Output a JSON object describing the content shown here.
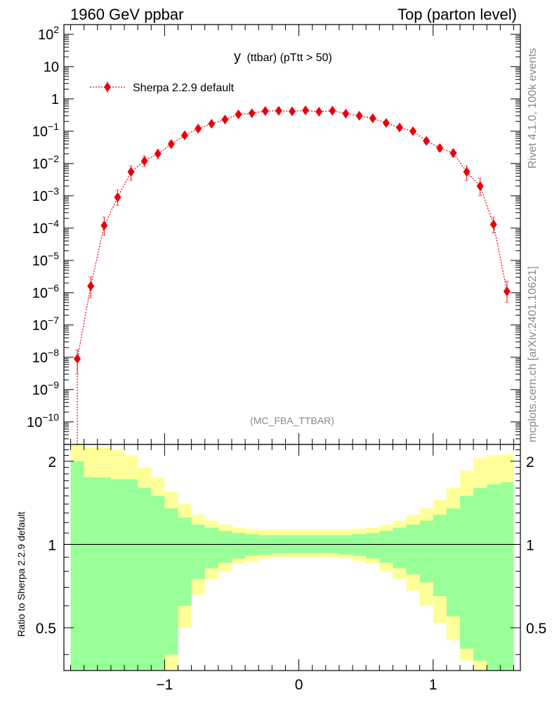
{
  "header": {
    "left": "1960 GeV ppbar",
    "right": "Top (parton level)"
  },
  "plot_title": {
    "main": "y",
    "sub": "(ttbar)  (pTtt > 50)"
  },
  "analysis_tag": "(MC_FBA_TTBAR)",
  "side_text": {
    "top": "Rivet 4.1.0,  100k events",
    "bottom": "mcplots.cern.ch [arXiv:2401.10621]"
  },
  "legend": {
    "label": "Sherpa 2.2.9 default"
  },
  "ratio_ylabel": "Ratio to Sherpa 2.2.9 default",
  "colors": {
    "series": "#e8000b",
    "band_inner": "#99ff99",
    "band_outer": "#ffff99",
    "axis": "#000000",
    "annotation": "#888888"
  },
  "chart_data": [
    {
      "type": "scatter",
      "yscale": "log",
      "xlim": [
        -1.75,
        1.65
      ],
      "ylim": [
        2e-11,
        200
      ],
      "ytick_labels": [
        "10^2",
        "10",
        "1",
        "10^-1",
        "10^-2",
        "10^-3",
        "10^-4",
        "10^-5",
        "10^-6",
        "10^-7",
        "10^-8",
        "10^-9",
        "10^-10"
      ],
      "series": [
        {
          "name": "Sherpa 2.2.9 default",
          "x": [
            -1.65,
            -1.55,
            -1.45,
            -1.35,
            -1.25,
            -1.15,
            -1.05,
            -0.95,
            -0.85,
            -0.75,
            -0.65,
            -0.55,
            -0.45,
            -0.35,
            -0.25,
            -0.15,
            -0.05,
            0.05,
            0.15,
            0.25,
            0.35,
            0.45,
            0.55,
            0.65,
            0.75,
            0.85,
            0.95,
            1.05,
            1.15,
            1.25,
            1.35,
            1.45,
            1.55
          ],
          "y": [
            9e-09,
            1.6e-06,
            0.00012,
            0.0009,
            0.0055,
            0.012,
            0.02,
            0.04,
            0.075,
            0.12,
            0.17,
            0.23,
            0.33,
            0.36,
            0.42,
            0.43,
            0.41,
            0.44,
            0.4,
            0.43,
            0.35,
            0.3,
            0.25,
            0.18,
            0.13,
            0.1,
            0.05,
            0.03,
            0.021,
            0.0055,
            0.002,
            0.00013,
            1.1e-06
          ],
          "y_err_low": [
            6e-09,
            9e-07,
            6e-05,
            0.0004,
            0.0025,
            0.004,
            0.006,
            0.008,
            0.012,
            0.015,
            0.02,
            0.02,
            0.025,
            0.025,
            0.025,
            0.025,
            0.025,
            0.025,
            0.025,
            0.025,
            0.025,
            0.025,
            0.02,
            0.02,
            0.015,
            0.012,
            0.008,
            0.006,
            0.005,
            0.0025,
            0.001,
            6e-05,
            6e-07
          ],
          "y_err_high": [
            8e-09,
            1.5e-06,
            0.0001,
            0.0006,
            0.003,
            0.005,
            0.007,
            0.009,
            0.013,
            0.016,
            0.02,
            0.02,
            0.025,
            0.025,
            0.025,
            0.025,
            0.025,
            0.025,
            0.025,
            0.025,
            0.025,
            0.025,
            0.02,
            0.02,
            0.015,
            0.013,
            0.009,
            0.007,
            0.006,
            0.003,
            0.0015,
            9e-05,
            1.2e-06
          ]
        }
      ]
    },
    {
      "type": "area",
      "xlim": [
        -1.75,
        1.65
      ],
      "ylim": [
        0.35,
        2.3
      ],
      "ytick_labels": [
        "0.5",
        "1",
        "2"
      ],
      "xtick_labels": [
        "−1",
        "0",
        "1"
      ],
      "reference_line": 1,
      "bin_edges": [
        -1.7,
        -1.6,
        -1.5,
        -1.4,
        -1.3,
        -1.2,
        -1.1,
        -1.0,
        -0.9,
        -0.8,
        -0.7,
        -0.6,
        -0.5,
        -0.4,
        -0.3,
        -0.2,
        -0.1,
        0.0,
        0.1,
        0.2,
        0.3,
        0.4,
        0.5,
        0.6,
        0.7,
        0.8,
        0.9,
        1.0,
        1.1,
        1.2,
        1.3,
        1.4,
        1.5,
        1.6
      ],
      "inner_band": {
        "upper": [
          2.0,
          1.75,
          1.75,
          1.72,
          1.72,
          1.6,
          1.5,
          1.35,
          1.25,
          1.18,
          1.15,
          1.12,
          1.1,
          1.09,
          1.08,
          1.08,
          1.08,
          1.08,
          1.08,
          1.08,
          1.08,
          1.09,
          1.1,
          1.12,
          1.15,
          1.18,
          1.22,
          1.28,
          1.35,
          1.5,
          1.6,
          1.65,
          1.68
        ],
        "lower": [
          0.35,
          0.35,
          0.35,
          0.35,
          0.35,
          0.35,
          0.35,
          0.4,
          0.6,
          0.75,
          0.82,
          0.86,
          0.89,
          0.91,
          0.92,
          0.93,
          0.93,
          0.93,
          0.93,
          0.93,
          0.92,
          0.91,
          0.89,
          0.86,
          0.82,
          0.78,
          0.73,
          0.65,
          0.55,
          0.42,
          0.38,
          0.35,
          0.35
        ]
      },
      "outer_band": {
        "upper": [
          2.3,
          2.25,
          2.25,
          2.2,
          2.1,
          1.9,
          1.75,
          1.55,
          1.4,
          1.28,
          1.22,
          1.18,
          1.15,
          1.14,
          1.13,
          1.13,
          1.13,
          1.13,
          1.13,
          1.13,
          1.13,
          1.14,
          1.15,
          1.18,
          1.22,
          1.28,
          1.35,
          1.45,
          1.6,
          1.85,
          2.05,
          2.1,
          2.12
        ],
        "lower": [
          0.35,
          0.35,
          0.35,
          0.35,
          0.35,
          0.35,
          0.35,
          0.35,
          0.5,
          0.66,
          0.75,
          0.8,
          0.85,
          0.87,
          0.89,
          0.9,
          0.9,
          0.9,
          0.9,
          0.9,
          0.89,
          0.87,
          0.85,
          0.8,
          0.75,
          0.68,
          0.6,
          0.52,
          0.45,
          0.38,
          0.35,
          0.35,
          0.35
        ]
      }
    }
  ]
}
